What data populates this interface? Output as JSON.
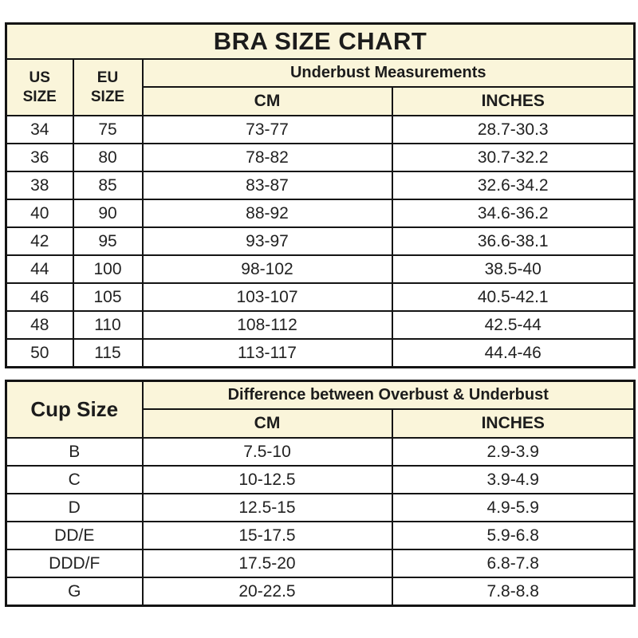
{
  "colors": {
    "header_bg": "#faf5da",
    "cell_bg": "#ffffff",
    "border": "#141414",
    "text": "#1c1c1c"
  },
  "chart_data": [
    {
      "type": "table",
      "title": "BRA SIZE CHART",
      "headers": {
        "us_line1": "US",
        "us_line2": "SIZE",
        "eu_line1": "EU",
        "eu_line2": "SIZE",
        "group": "Underbust Measurements",
        "cm": "CM",
        "inches": "INCHES"
      },
      "rows": [
        {
          "us": "34",
          "eu": "75",
          "cm": "73-77",
          "inches": "28.7-30.3"
        },
        {
          "us": "36",
          "eu": "80",
          "cm": "78-82",
          "inches": "30.7-32.2"
        },
        {
          "us": "38",
          "eu": "85",
          "cm": "83-87",
          "inches": "32.6-34.2"
        },
        {
          "us": "40",
          "eu": "90",
          "cm": "88-92",
          "inches": "34.6-36.2"
        },
        {
          "us": "42",
          "eu": "95",
          "cm": "93-97",
          "inches": "36.6-38.1"
        },
        {
          "us": "44",
          "eu": "100",
          "cm": "98-102",
          "inches": "38.5-40"
        },
        {
          "us": "46",
          "eu": "105",
          "cm": "103-107",
          "inches": "40.5-42.1"
        },
        {
          "us": "48",
          "eu": "110",
          "cm": "108-112",
          "inches": "42.5-44"
        },
        {
          "us": "50",
          "eu": "115",
          "cm": "113-117",
          "inches": "44.4-46"
        }
      ]
    },
    {
      "type": "table",
      "headers": {
        "cup": "Cup Size",
        "group": "Difference between Overbust & Underbust",
        "cm": "CM",
        "inches": "INCHES"
      },
      "rows": [
        {
          "cup": "B",
          "cm": "7.5-10",
          "inches": "2.9-3.9"
        },
        {
          "cup": "C",
          "cm": "10-12.5",
          "inches": "3.9-4.9"
        },
        {
          "cup": "D",
          "cm": "12.5-15",
          "inches": "4.9-5.9"
        },
        {
          "cup": "DD/E",
          "cm": "15-17.5",
          "inches": "5.9-6.8"
        },
        {
          "cup": "DDD/F",
          "cm": "17.5-20",
          "inches": "6.8-7.8"
        },
        {
          "cup": "G",
          "cm": "20-22.5",
          "inches": "7.8-8.8"
        }
      ]
    }
  ]
}
